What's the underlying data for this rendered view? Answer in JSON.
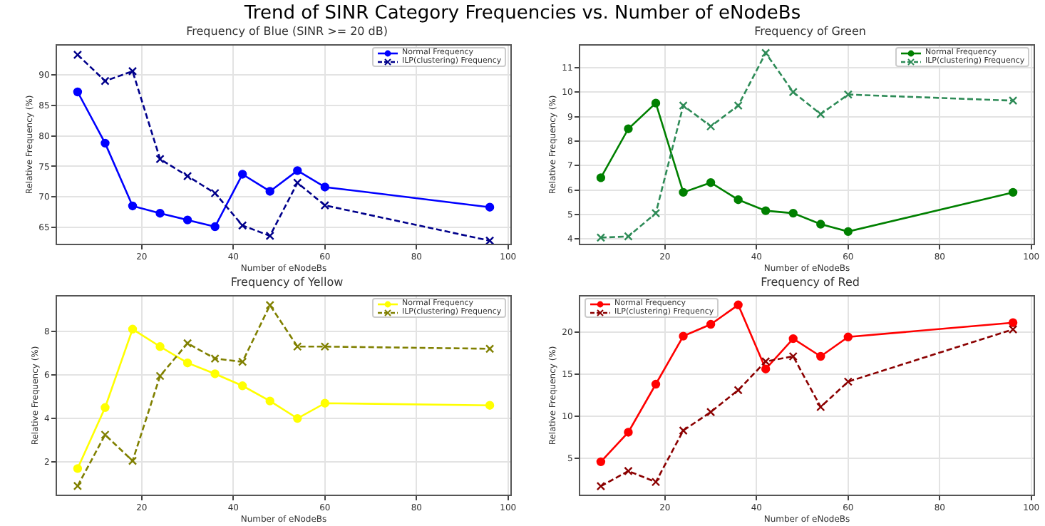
{
  "chart_data": [
    {
      "type": "line",
      "title": "Trend of SINR Category Frequencies vs. Number of eNodeBs",
      "subtitle": "Frequency of Blue (SINR >= 20 dB)",
      "xlabel": "Number of eNodeBs",
      "ylabel": "Relative Frequency (%)",
      "x": [
        6,
        12,
        18,
        24,
        30,
        36,
        42,
        48,
        54,
        60,
        96
      ],
      "xlim": [
        1.5,
        100.5
      ],
      "xticks": [
        20,
        40,
        60,
        80,
        100
      ],
      "ylim": [
        62.3,
        94.8
      ],
      "yticks": [
        65,
        70,
        75,
        80,
        85,
        90
      ],
      "grid": true,
      "legend": "top right",
      "series": [
        {
          "name": "Normal Frequency",
          "color": "#0000ff",
          "marker": "circle",
          "line_style": "solid",
          "values": [
            87.2,
            78.8,
            68.5,
            67.3,
            66.2,
            65.1,
            73.7,
            70.9,
            74.3,
            71.6,
            68.3
          ]
        },
        {
          "name": "ILP(clustering) Frequency",
          "color": "#00008b",
          "marker": "cross",
          "line_style": "dashed",
          "values": [
            93.3,
            89.0,
            90.6,
            76.2,
            73.4,
            70.6,
            65.3,
            63.6,
            72.3,
            68.6,
            62.8
          ]
        }
      ]
    },
    {
      "type": "line",
      "subtitle": "Frequency of Green",
      "xlabel": "Number of eNodeBs",
      "ylabel": "Relative Frequency (%)",
      "x": [
        6,
        12,
        18,
        24,
        30,
        36,
        42,
        48,
        54,
        60,
        96
      ],
      "xlim": [
        1.5,
        100.5
      ],
      "xticks": [
        20,
        40,
        60,
        80,
        100
      ],
      "ylim": [
        3.8,
        11.9
      ],
      "yticks": [
        4,
        5,
        6,
        7,
        8,
        9,
        10,
        11
      ],
      "grid": true,
      "legend": "top right",
      "series": [
        {
          "name": "Normal Frequency",
          "color": "#008000",
          "marker": "circle",
          "line_style": "solid",
          "values": [
            6.5,
            8.5,
            9.55,
            5.9,
            6.3,
            5.6,
            5.15,
            5.05,
            4.6,
            4.3,
            5.9
          ]
        },
        {
          "name": "ILP(clustering) Frequency",
          "color": "#2e8b57",
          "marker": "cross",
          "line_style": "dashed",
          "values": [
            4.05,
            4.1,
            5.05,
            9.45,
            8.6,
            9.45,
            11.6,
            10.0,
            9.1,
            9.9,
            9.65
          ]
        }
      ]
    },
    {
      "type": "line",
      "subtitle": "Frequency of Yellow",
      "xlabel": "Number of eNodeBs",
      "ylabel": "Relative Frequency (%)",
      "x": [
        6,
        12,
        18,
        24,
        30,
        36,
        42,
        48,
        54,
        60,
        96
      ],
      "xlim": [
        1.5,
        100.5
      ],
      "xticks": [
        20,
        40,
        60,
        80,
        100
      ],
      "ylim": [
        0.5,
        9.6
      ],
      "yticks": [
        2,
        4,
        6,
        8
      ],
      "grid": true,
      "legend": "top right",
      "series": [
        {
          "name": "Normal Frequency",
          "color": "#ffff00",
          "marker": "circle",
          "line_style": "solid",
          "values": [
            1.7,
            4.5,
            8.1,
            7.3,
            6.55,
            6.05,
            5.5,
            4.8,
            4.0,
            4.7,
            4.6
          ]
        },
        {
          "name": "ILP(clustering) Frequency",
          "color": "#808000",
          "marker": "cross",
          "line_style": "dashed",
          "values": [
            0.9,
            3.25,
            2.05,
            5.95,
            7.45,
            6.75,
            6.6,
            9.2,
            7.3,
            7.3,
            7.2
          ]
        }
      ]
    },
    {
      "type": "line",
      "subtitle": "Frequency of Red",
      "xlabel": "Number of eNodeBs",
      "ylabel": "Relative Frequency (%)",
      "x": [
        6,
        12,
        18,
        24,
        30,
        36,
        42,
        48,
        54,
        60,
        96
      ],
      "xlim": [
        1.5,
        100.5
      ],
      "xticks": [
        20,
        40,
        60,
        80,
        100
      ],
      "ylim": [
        0.7,
        24.2
      ],
      "yticks": [
        5,
        10,
        15,
        20
      ],
      "grid": true,
      "legend": "top left",
      "series": [
        {
          "name": "Normal Frequency",
          "color": "#ff0000",
          "marker": "circle",
          "line_style": "solid",
          "values": [
            4.6,
            8.1,
            13.8,
            19.5,
            20.9,
            23.2,
            15.6,
            19.2,
            17.1,
            19.4,
            21.1
          ]
        },
        {
          "name": "ILP(clustering) Frequency",
          "color": "#8b0000",
          "marker": "cross",
          "line_style": "dashed",
          "values": [
            1.7,
            3.5,
            2.2,
            8.3,
            10.5,
            13.1,
            16.5,
            17.1,
            11.1,
            14.1,
            20.3
          ]
        }
      ]
    }
  ]
}
